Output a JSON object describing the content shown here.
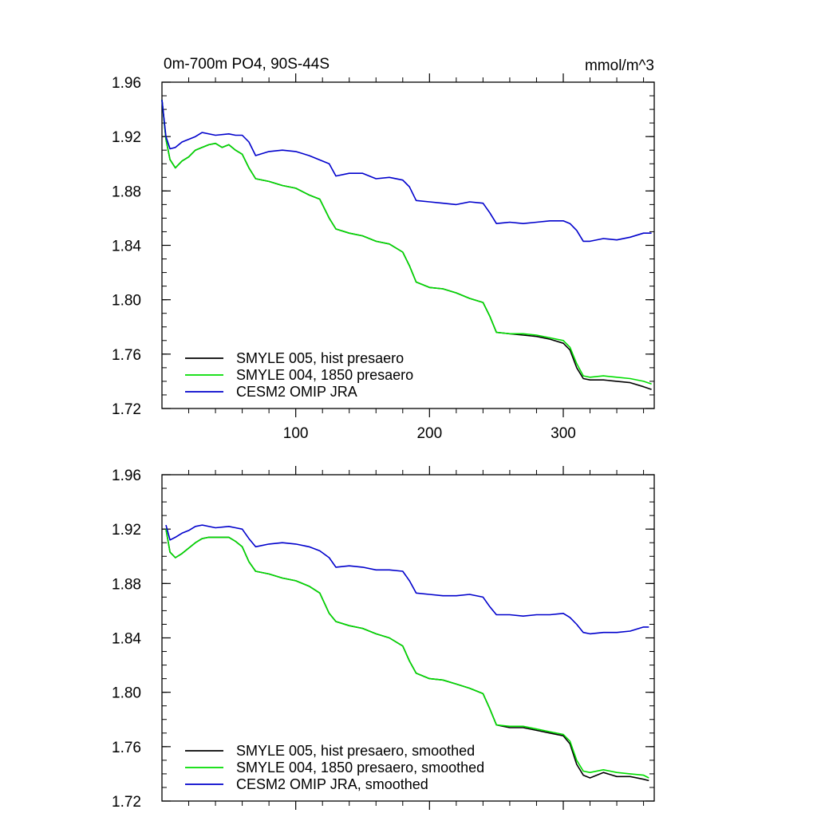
{
  "chart_data": [
    {
      "type": "line",
      "title_left": "0m-700m PO4, 90S-44S",
      "title_right": "mmol/m^3",
      "xlim": [
        0,
        368
      ],
      "ylim": [
        1.72,
        1.96
      ],
      "x_ticks": [
        100,
        200,
        300
      ],
      "x_tick_labels": [
        "100",
        "200",
        "300"
      ],
      "y_ticks": [
        1.72,
        1.76,
        1.8,
        1.84,
        1.88,
        1.92,
        1.96
      ],
      "y_tick_labels": [
        "1.72",
        "1.76",
        "1.80",
        "1.84",
        "1.88",
        "1.92",
        "1.96"
      ],
      "grid": false,
      "legend": "bottom-left",
      "series": [
        {
          "name": "SMYLE 005, hist presaero",
          "color": "#000000",
          "x": [
            0,
            3,
            6,
            10,
            15,
            20,
            25,
            30,
            35,
            40,
            45,
            50,
            55,
            60,
            65,
            70,
            80,
            90,
            100,
            110,
            118,
            125,
            130,
            140,
            150,
            160,
            170,
            180,
            185,
            190,
            200,
            210,
            220,
            230,
            240,
            245,
            250,
            260,
            270,
            280,
            290,
            300,
            305,
            310,
            315,
            320,
            330,
            340,
            350,
            360,
            366
          ],
          "y": [
            1.947,
            1.918,
            1.903,
            1.897,
            1.902,
            1.905,
            1.91,
            1.912,
            1.914,
            1.915,
            1.912,
            1.914,
            1.91,
            1.907,
            1.897,
            1.889,
            1.887,
            1.884,
            1.882,
            1.877,
            1.874,
            1.86,
            1.852,
            1.849,
            1.847,
            1.843,
            1.841,
            1.835,
            1.825,
            1.813,
            1.809,
            1.808,
            1.805,
            1.801,
            1.798,
            1.788,
            1.776,
            1.775,
            1.774,
            1.773,
            1.771,
            1.768,
            1.763,
            1.75,
            1.742,
            1.741,
            1.741,
            1.74,
            1.739,
            1.736,
            1.734
          ]
        },
        {
          "name": "SMYLE 004, 1850 presaero",
          "color": "#00dd00",
          "x": [
            0,
            3,
            6,
            10,
            15,
            20,
            25,
            30,
            35,
            40,
            45,
            50,
            55,
            60,
            65,
            70,
            80,
            90,
            100,
            110,
            118,
            125,
            130,
            140,
            150,
            160,
            170,
            180,
            185,
            190,
            200,
            210,
            220,
            230,
            240,
            245,
            250,
            260,
            270,
            280,
            290,
            300,
            305,
            310,
            315,
            320,
            330,
            340,
            350,
            360,
            366
          ],
          "y": [
            1.947,
            1.918,
            1.903,
            1.897,
            1.902,
            1.905,
            1.91,
            1.912,
            1.914,
            1.915,
            1.912,
            1.914,
            1.91,
            1.907,
            1.897,
            1.889,
            1.887,
            1.884,
            1.882,
            1.877,
            1.874,
            1.86,
            1.852,
            1.849,
            1.847,
            1.843,
            1.841,
            1.835,
            1.825,
            1.813,
            1.809,
            1.808,
            1.805,
            1.801,
            1.798,
            1.788,
            1.776,
            1.775,
            1.775,
            1.774,
            1.772,
            1.77,
            1.765,
            1.753,
            1.744,
            1.743,
            1.744,
            1.743,
            1.742,
            1.74,
            1.738
          ]
        },
        {
          "name": "CESM2 OMIP JRA",
          "color": "#0000cc",
          "x": [
            0,
            3,
            6,
            10,
            15,
            20,
            25,
            30,
            40,
            50,
            55,
            60,
            65,
            70,
            80,
            90,
            100,
            110,
            125,
            130,
            140,
            150,
            160,
            170,
            180,
            185,
            190,
            200,
            210,
            220,
            230,
            240,
            245,
            250,
            260,
            270,
            280,
            290,
            300,
            305,
            310,
            315,
            320,
            330,
            340,
            350,
            360,
            366
          ],
          "y": [
            1.947,
            1.92,
            1.911,
            1.912,
            1.916,
            1.918,
            1.92,
            1.923,
            1.921,
            1.922,
            1.921,
            1.921,
            1.916,
            1.906,
            1.909,
            1.91,
            1.909,
            1.906,
            1.9,
            1.891,
            1.893,
            1.893,
            1.889,
            1.89,
            1.888,
            1.883,
            1.873,
            1.872,
            1.871,
            1.87,
            1.872,
            1.871,
            1.864,
            1.856,
            1.857,
            1.856,
            1.857,
            1.858,
            1.858,
            1.856,
            1.851,
            1.843,
            1.843,
            1.845,
            1.844,
            1.846,
            1.849,
            1.849
          ]
        }
      ]
    },
    {
      "type": "line",
      "xlim": [
        0,
        368
      ],
      "ylim": [
        1.72,
        1.96
      ],
      "x_ticks": [
        100,
        200,
        300
      ],
      "y_ticks": [
        1.72,
        1.76,
        1.8,
        1.84,
        1.88,
        1.92,
        1.96
      ],
      "y_tick_labels": [
        "1.72",
        "1.76",
        "1.80",
        "1.84",
        "1.88",
        "1.92",
        "1.96"
      ],
      "grid": false,
      "legend": "bottom-left",
      "series": [
        {
          "name": "SMYLE 005, hist presaero, smoothed",
          "color": "#000000",
          "x": [
            3,
            6,
            10,
            15,
            20,
            25,
            30,
            35,
            40,
            45,
            50,
            55,
            60,
            65,
            70,
            80,
            90,
            100,
            110,
            118,
            125,
            130,
            140,
            150,
            160,
            170,
            180,
            185,
            190,
            200,
            210,
            220,
            230,
            240,
            245,
            250,
            260,
            270,
            280,
            290,
            300,
            305,
            310,
            315,
            320,
            330,
            340,
            350,
            360,
            364
          ],
          "y": [
            1.92,
            1.903,
            1.899,
            1.902,
            1.906,
            1.91,
            1.913,
            1.914,
            1.914,
            1.914,
            1.914,
            1.911,
            1.907,
            1.896,
            1.889,
            1.887,
            1.884,
            1.882,
            1.878,
            1.873,
            1.858,
            1.852,
            1.849,
            1.847,
            1.843,
            1.84,
            1.834,
            1.823,
            1.814,
            1.81,
            1.809,
            1.806,
            1.803,
            1.799,
            1.788,
            1.776,
            1.774,
            1.774,
            1.772,
            1.77,
            1.768,
            1.762,
            1.747,
            1.739,
            1.737,
            1.741,
            1.738,
            1.738,
            1.736,
            1.735
          ]
        },
        {
          "name": "SMYLE 004, 1850 presaero, smoothed",
          "color": "#00dd00",
          "x": [
            3,
            6,
            10,
            15,
            20,
            25,
            30,
            35,
            40,
            45,
            50,
            55,
            60,
            65,
            70,
            80,
            90,
            100,
            110,
            118,
            125,
            130,
            140,
            150,
            160,
            170,
            180,
            185,
            190,
            200,
            210,
            220,
            230,
            240,
            245,
            250,
            260,
            270,
            280,
            290,
            300,
            305,
            310,
            315,
            320,
            330,
            340,
            350,
            360,
            364
          ],
          "y": [
            1.92,
            1.903,
            1.899,
            1.902,
            1.906,
            1.91,
            1.913,
            1.914,
            1.914,
            1.914,
            1.914,
            1.911,
            1.907,
            1.896,
            1.889,
            1.887,
            1.884,
            1.882,
            1.878,
            1.873,
            1.858,
            1.852,
            1.849,
            1.847,
            1.843,
            1.84,
            1.834,
            1.823,
            1.814,
            1.81,
            1.809,
            1.806,
            1.803,
            1.799,
            1.788,
            1.776,
            1.775,
            1.775,
            1.773,
            1.771,
            1.769,
            1.764,
            1.75,
            1.742,
            1.741,
            1.743,
            1.741,
            1.74,
            1.739,
            1.737
          ]
        },
        {
          "name": "CESM2 OMIP JRA, smoothed",
          "color": "#0000cc",
          "x": [
            3,
            6,
            10,
            15,
            20,
            25,
            30,
            40,
            50,
            55,
            60,
            65,
            70,
            80,
            90,
            100,
            110,
            118,
            125,
            130,
            140,
            150,
            160,
            170,
            180,
            185,
            190,
            200,
            210,
            220,
            230,
            240,
            245,
            250,
            260,
            270,
            280,
            290,
            300,
            305,
            310,
            315,
            320,
            330,
            340,
            350,
            360,
            364
          ],
          "y": [
            1.923,
            1.912,
            1.914,
            1.917,
            1.919,
            1.922,
            1.923,
            1.921,
            1.922,
            1.921,
            1.92,
            1.913,
            1.907,
            1.909,
            1.91,
            1.909,
            1.907,
            1.904,
            1.899,
            1.892,
            1.893,
            1.892,
            1.89,
            1.89,
            1.889,
            1.882,
            1.873,
            1.872,
            1.871,
            1.871,
            1.872,
            1.87,
            1.863,
            1.857,
            1.857,
            1.856,
            1.857,
            1.857,
            1.858,
            1.855,
            1.85,
            1.844,
            1.843,
            1.844,
            1.844,
            1.845,
            1.848,
            1.848
          ]
        }
      ]
    }
  ]
}
